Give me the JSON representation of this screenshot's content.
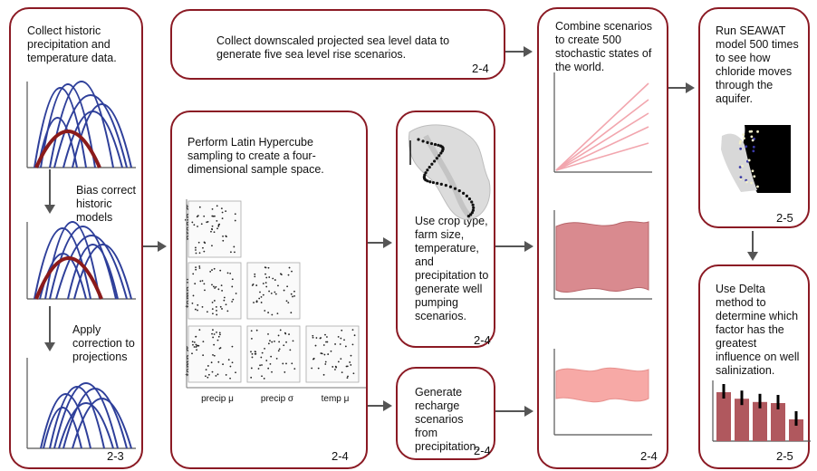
{
  "steps": {
    "collect_historic": "Collect historic precipitation and temperature data.",
    "bias_correct": "Bias correct historic models",
    "apply_correction": "Apply correction to projections",
    "sea_level": "Collect downscaled projected sea level data to generate five sea level rise scenarios.",
    "lhs": "Perform Latin Hypercube sampling to create a four-dimensional sample space.",
    "crop": "Use crop type, farm size, temperature, and precipitation to generate well pumping scenarios.",
    "recharge": "Generate recharge scenarios from precipitation.",
    "combine": "Combine scenarios to create 500 stochastic states of the world.",
    "seawat": "Run SEAWAT model 500 times to see how chloride moves through the aquifer.",
    "delta": "Use Delta method to determine which factor has the greatest influence on well salinization."
  },
  "section_refs": {
    "climate": "2-3",
    "sea_level": "2-4",
    "lhs": "2-4",
    "crop": "2-4",
    "recharge": "2-4",
    "combine": "2-4",
    "seawat": "2-5",
    "delta": "2-5"
  },
  "lhs_axes": {
    "precip_sigma": "precip σ",
    "temp_mu": "temp μ",
    "temp_sigma": "temp σ",
    "x_precip_mu": "precip μ",
    "x_precip_sigma": "precip σ",
    "x_temp_mu": "temp μ"
  },
  "delta_chart": {
    "type": "bar",
    "values": [
      0.9,
      0.78,
      0.72,
      0.7,
      0.4
    ]
  },
  "colors": {
    "box_border": "#8b1a24",
    "arrow": "#555555",
    "curve_blue": "#2e3f9a",
    "curve_red": "#8b1a1a",
    "line_pink": "#f2a6ae",
    "band_dark": "#d98a8f",
    "band_light": "#f7a9a6",
    "bar_color": "#b0585e"
  }
}
